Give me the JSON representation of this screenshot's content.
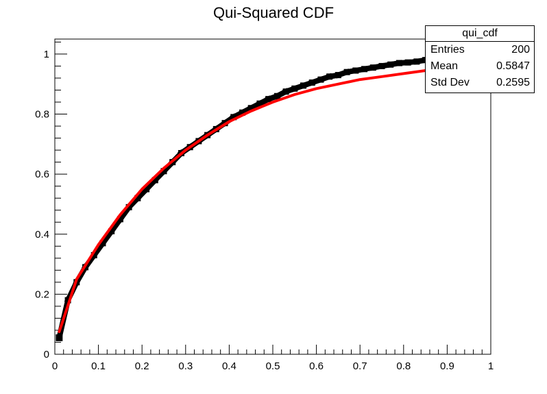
{
  "chart_data": {
    "type": "scatter",
    "title": "Qui-Squared CDF",
    "xlim": [
      0,
      1
    ],
    "ylim": [
      0,
      1.05
    ],
    "x_ticks": [
      "0",
      "0.1",
      "0.2",
      "0.3",
      "0.4",
      "0.5",
      "0.6",
      "0.7",
      "0.8",
      "0.9",
      "1"
    ],
    "y_ticks": [
      "0",
      "0.2",
      "0.4",
      "0.6",
      "0.8",
      "1"
    ],
    "grid": false,
    "marker_color": "#000000",
    "fit_color": "#ff0000",
    "points": {
      "x": [
        0.01,
        0.03,
        0.05,
        0.07,
        0.09,
        0.11,
        0.13,
        0.15,
        0.17,
        0.19,
        0.21,
        0.23,
        0.25,
        0.27,
        0.29,
        0.31,
        0.33,
        0.35,
        0.37,
        0.39,
        0.41,
        0.43,
        0.45,
        0.47,
        0.49,
        0.51,
        0.53,
        0.55,
        0.57,
        0.59,
        0.61,
        0.63,
        0.65,
        0.67,
        0.69,
        0.71,
        0.73,
        0.75,
        0.77,
        0.79,
        0.81,
        0.83,
        0.85,
        0.87,
        0.89,
        0.91,
        0.93,
        0.95
      ],
      "y": [
        0.055,
        0.18,
        0.24,
        0.29,
        0.33,
        0.37,
        0.41,
        0.45,
        0.49,
        0.52,
        0.55,
        0.58,
        0.61,
        0.64,
        0.67,
        0.69,
        0.71,
        0.73,
        0.75,
        0.77,
        0.79,
        0.805,
        0.82,
        0.835,
        0.85,
        0.86,
        0.875,
        0.885,
        0.895,
        0.905,
        0.915,
        0.925,
        0.93,
        0.94,
        0.945,
        0.95,
        0.955,
        0.96,
        0.965,
        0.97,
        0.972,
        0.975,
        0.98,
        0.985,
        0.99,
        0.993,
        0.995,
        0.998
      ]
    },
    "fit": {
      "x": [
        0.01,
        0.05,
        0.1,
        0.15,
        0.2,
        0.25,
        0.3,
        0.35,
        0.4,
        0.45,
        0.5,
        0.55,
        0.6,
        0.65,
        0.7,
        0.75,
        0.8,
        0.85,
        0.9,
        0.95,
        1.0
      ],
      "y": [
        0.075,
        0.25,
        0.365,
        0.465,
        0.55,
        0.62,
        0.68,
        0.73,
        0.775,
        0.81,
        0.84,
        0.865,
        0.885,
        0.9,
        0.915,
        0.925,
        0.935,
        0.945,
        0.955,
        0.965,
        0.975
      ]
    },
    "stats_box": {
      "name": "qui_cdf",
      "rows": [
        {
          "label": "Entries",
          "value": "200"
        },
        {
          "label": "Mean",
          "value": "0.5847"
        },
        {
          "label": "Std Dev",
          "value": "0.2595"
        }
      ]
    }
  }
}
